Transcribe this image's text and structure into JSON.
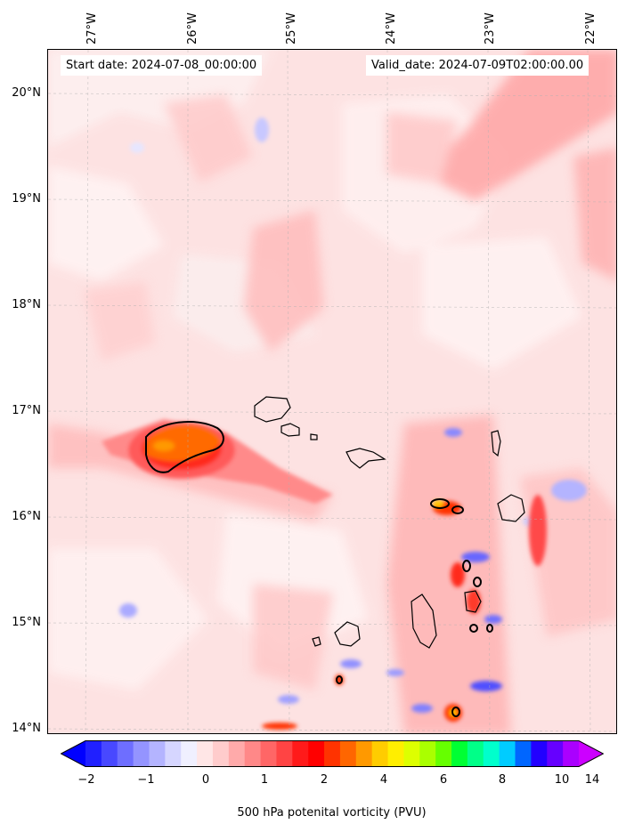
{
  "map": {
    "lon_labels": [
      "27°W",
      "26°W",
      "25°W",
      "24°W",
      "23°W",
      "22°W"
    ],
    "lat_labels": [
      "20°N",
      "19°N",
      "18°N",
      "17°N",
      "16°N",
      "15°N",
      "14°N"
    ],
    "start_date": "Start date: 2024-07-08_00:00:00",
    "valid_date": "Valid_date: 2024-07-09T02:00:00.00",
    "features": [
      "Cape Verde islands coastline",
      "potential vorticity field",
      "1.5 PVU contour"
    ]
  },
  "colorbar": {
    "label": "500 hPa potenital vorticity (PVU)",
    "ticks": [
      "−2",
      "−1",
      "0",
      "1",
      "2",
      "4",
      "6",
      "8",
      "10",
      "14"
    ],
    "colors": [
      "#0000ff",
      "#2020ff",
      "#4848ff",
      "#6e6eff",
      "#9494ff",
      "#b4b4ff",
      "#d6d6ff",
      "#f0f0ff",
      "#ffe6e6",
      "#ffcccc",
      "#ffaaaa",
      "#ff8888",
      "#ff6666",
      "#ff4444",
      "#ff1a1a",
      "#ff0000",
      "#ff3300",
      "#ff6600",
      "#ff9900",
      "#ffcc00",
      "#ffee00",
      "#ddff00",
      "#aaff00",
      "#66ff00",
      "#00ff33",
      "#00ff88",
      "#00ffcc",
      "#00ccff",
      "#0066ff",
      "#2200ff",
      "#6600ff",
      "#aa00ff",
      "#cc00ff"
    ]
  }
}
